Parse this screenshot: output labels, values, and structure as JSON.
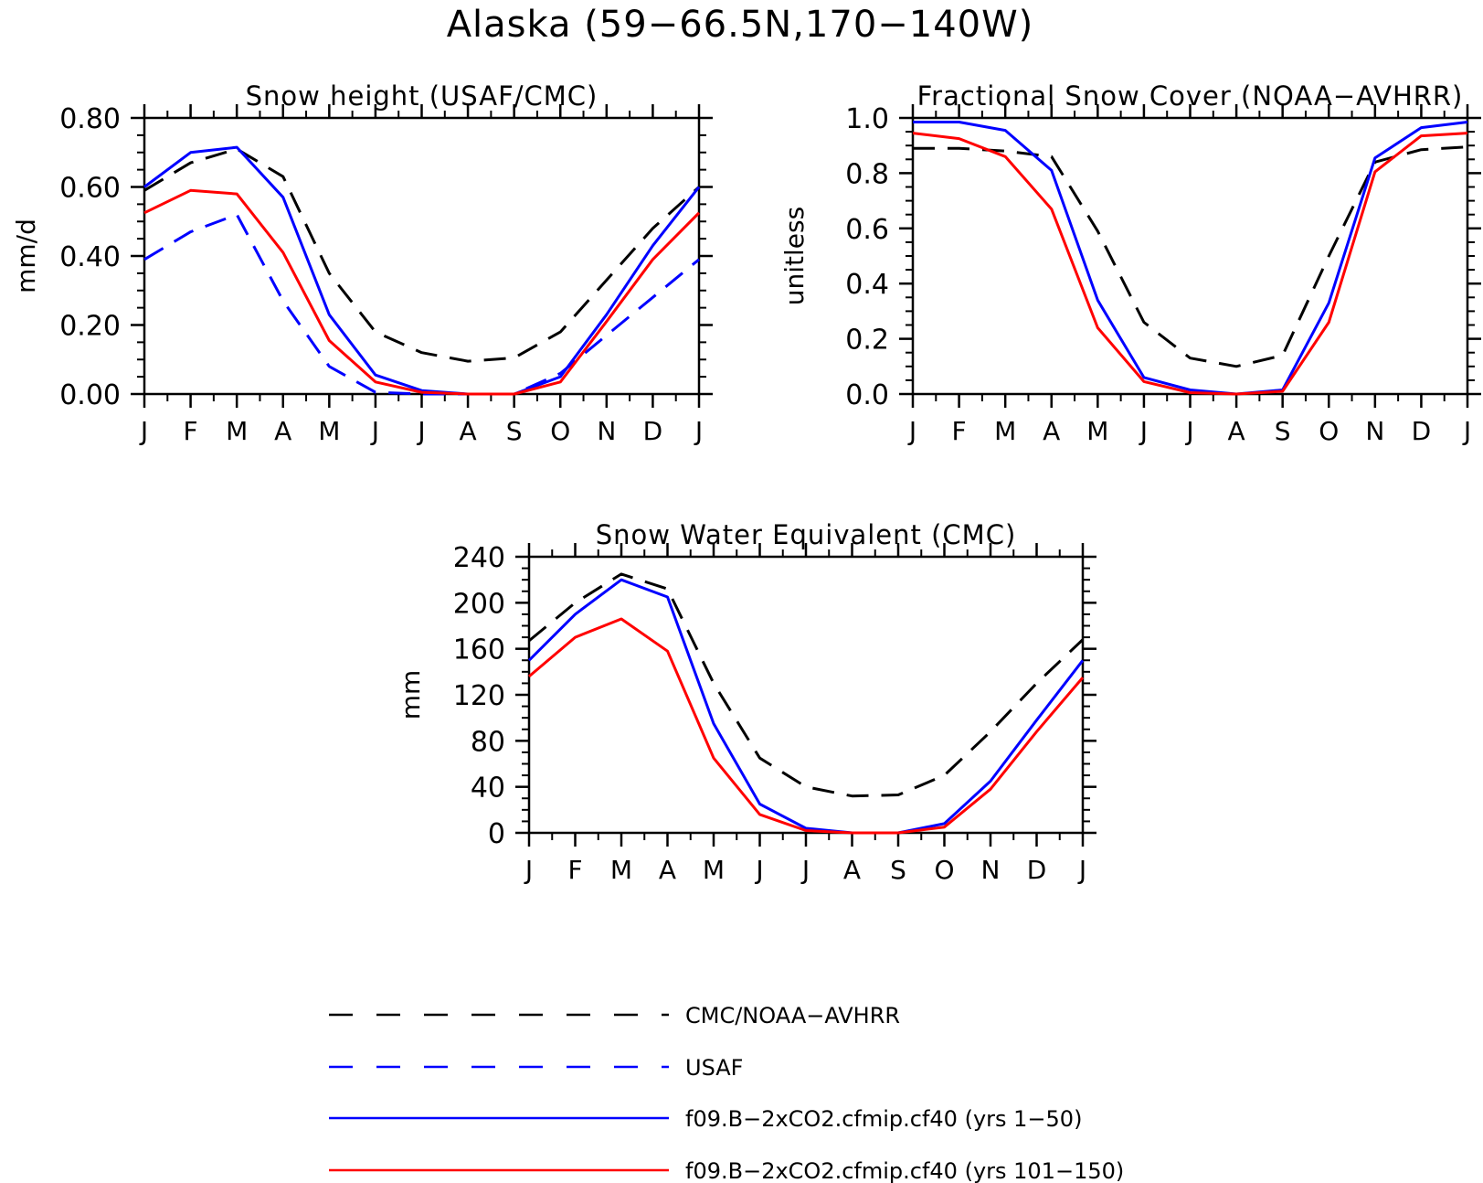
{
  "figure": {
    "title": "Alaska (59−66.5N,170−140W)"
  },
  "colors": {
    "obs": "#000000",
    "usaf": "#0000ff",
    "run1": "#0000ff",
    "run2": "#ff0000"
  },
  "legend": [
    {
      "label": "CMC/NOAA−AVHRR",
      "color": "#000000",
      "dashed": true
    },
    {
      "label": "USAF",
      "color": "#0000ff",
      "dashed": true
    },
    {
      "label": "f09.B−2xCO2.cfmip.cf40 (yrs 1−50)",
      "color": "#0000ff",
      "dashed": false
    },
    {
      "label": "f09.B−2xCO2.cfmip.cf40 (yrs 101−150)",
      "color": "#ff0000",
      "dashed": false
    }
  ],
  "chart_data": [
    {
      "type": "line",
      "title": "Snow height (USAF/CMC)",
      "xlabel": "",
      "ylabel": "mm/d",
      "categories": [
        "J",
        "F",
        "M",
        "A",
        "M",
        "J",
        "J",
        "A",
        "S",
        "O",
        "N",
        "D",
        "J"
      ],
      "ylim": [
        0,
        0.8
      ],
      "yticks": [
        "0.00",
        "0.20",
        "0.40",
        "0.60",
        "0.80"
      ],
      "grid": false,
      "series": [
        {
          "name": "CMC/NOAA−AVHRR",
          "color": "#000000",
          "dashed": true,
          "values": [
            0.59,
            0.67,
            0.71,
            0.63,
            0.35,
            0.18,
            0.12,
            0.095,
            0.105,
            0.18,
            0.33,
            0.48,
            0.6
          ]
        },
        {
          "name": "USAF",
          "color": "#0000ff",
          "dashed": true,
          "values": [
            0.39,
            0.47,
            0.52,
            0.27,
            0.08,
            0.005,
            0.0,
            0.0,
            0.0,
            0.06,
            0.17,
            0.28,
            0.39
          ]
        },
        {
          "name": "f09.B−2xCO2.cfmip.cf40 (yrs 1−50)",
          "color": "#0000ff",
          "dashed": false,
          "values": [
            0.6,
            0.7,
            0.715,
            0.57,
            0.23,
            0.055,
            0.01,
            0.0,
            0.0,
            0.05,
            0.23,
            0.43,
            0.6
          ]
        },
        {
          "name": "f09.B−2xCO2.cfmip.cf40 (yrs 101−150)",
          "color": "#ff0000",
          "dashed": false,
          "values": [
            0.525,
            0.59,
            0.58,
            0.41,
            0.155,
            0.035,
            0.005,
            0.0,
            0.0,
            0.035,
            0.21,
            0.39,
            0.525
          ]
        }
      ]
    },
    {
      "type": "line",
      "title": "Fractional Snow Cover (NOAA−AVHRR)",
      "xlabel": "",
      "ylabel": "unitless",
      "categories": [
        "J",
        "F",
        "M",
        "A",
        "M",
        "J",
        "J",
        "A",
        "S",
        "O",
        "N",
        "D",
        "J"
      ],
      "ylim": [
        0,
        1.0
      ],
      "yticks": [
        "0.0",
        "0.2",
        "0.4",
        "0.6",
        "0.8",
        "1.0"
      ],
      "grid": false,
      "series": [
        {
          "name": "CMC/NOAA−AVHRR",
          "color": "#000000",
          "dashed": true,
          "values": [
            0.89,
            0.89,
            0.88,
            0.86,
            0.59,
            0.26,
            0.13,
            0.1,
            0.14,
            0.5,
            0.84,
            0.885,
            0.895
          ]
        },
        {
          "name": "f09.B−2xCO2.cfmip.cf40 (yrs 1−50)",
          "color": "#0000ff",
          "dashed": false,
          "values": [
            0.985,
            0.985,
            0.955,
            0.81,
            0.34,
            0.06,
            0.015,
            0.0,
            0.015,
            0.33,
            0.855,
            0.965,
            0.985
          ]
        },
        {
          "name": "f09.B−2xCO2.cfmip.cf40 (yrs 101−150)",
          "color": "#ff0000",
          "dashed": false,
          "values": [
            0.945,
            0.925,
            0.86,
            0.67,
            0.24,
            0.045,
            0.005,
            0.0,
            0.01,
            0.26,
            0.805,
            0.935,
            0.945
          ]
        }
      ]
    },
    {
      "type": "line",
      "title": "Snow Water Equivalent (CMC)",
      "xlabel": "",
      "ylabel": "mm",
      "categories": [
        "J",
        "F",
        "M",
        "A",
        "M",
        "J",
        "J",
        "A",
        "S",
        "O",
        "N",
        "D",
        "J"
      ],
      "ylim": [
        0,
        240
      ],
      "yticks": [
        "0",
        "40",
        "80",
        "120",
        "160",
        "200",
        "240"
      ],
      "grid": false,
      "series": [
        {
          "name": "CMC/NOAA−AVHRR",
          "color": "#000000",
          "dashed": true,
          "values": [
            167,
            200,
            225,
            212,
            130,
            65,
            40,
            32,
            33,
            50,
            88,
            130,
            168
          ]
        },
        {
          "name": "f09.B−2xCO2.cfmip.cf40 (yrs 1−50)",
          "color": "#0000ff",
          "dashed": false,
          "values": [
            150,
            190,
            220,
            205,
            95,
            25,
            4,
            0,
            0,
            8,
            45,
            98,
            150
          ]
        },
        {
          "name": "f09.B−2xCO2.cfmip.cf40 (yrs 101−150)",
          "color": "#ff0000",
          "dashed": false,
          "values": [
            136,
            170,
            186,
            158,
            65,
            16,
            2,
            0,
            0,
            5,
            38,
            88,
            135
          ]
        }
      ]
    }
  ]
}
